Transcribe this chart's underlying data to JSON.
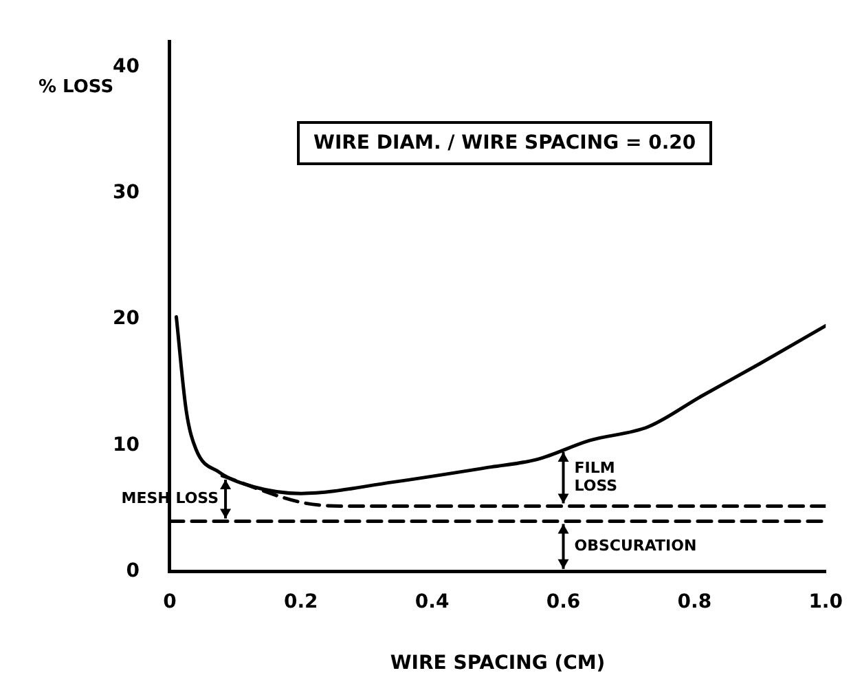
{
  "chart_data": {
    "type": "line",
    "xlabel": "WIRE SPACING (CM)",
    "ylabel": "% LOSS",
    "xlim": [
      0,
      1.0
    ],
    "xticks": [
      0,
      0.2,
      0.4,
      0.6,
      0.8,
      {
        "value": 1.0,
        "label": "1.0"
      }
    ],
    "ylim": [
      0,
      42
    ],
    "yticks": [
      0,
      10,
      20,
      30,
      40
    ],
    "grid": false,
    "legend": false,
    "marker": "none",
    "series": [
      {
        "color": "#000000",
        "line_style": "solid",
        "x": [
          0.01,
          0.025,
          0.04,
          0.075,
          0.13,
          0.2,
          0.34,
          0.49,
          0.56,
          0.64,
          0.73,
          0.81,
          0.9,
          1.0
        ],
        "values": [
          20.2,
          12.8,
          9.7,
          7.9,
          6.7,
          6.2,
          7.1,
          8.3,
          8.9,
          10.4,
          11.5,
          13.9,
          16.5,
          19.5
        ]
      },
      {
        "color": "#000000",
        "line_style": "dashed",
        "x": [
          0.08,
          0.2,
          0.26,
          1.0
        ],
        "values": [
          7.6,
          5.5,
          5.2,
          5.2
        ]
      },
      {
        "color": "#000000",
        "line_style": "dashed",
        "x": [
          0,
          1.0
        ],
        "values": [
          4,
          4
        ]
      }
    ],
    "annotations": [
      "WIRE DIAM. / WIRE SPACING = 0.20",
      "MESH LOSS",
      {
        "text": "FILM LOSS",
        "x": 0.6,
        "y": 9.7
      },
      "OBSCURATION"
    ]
  }
}
